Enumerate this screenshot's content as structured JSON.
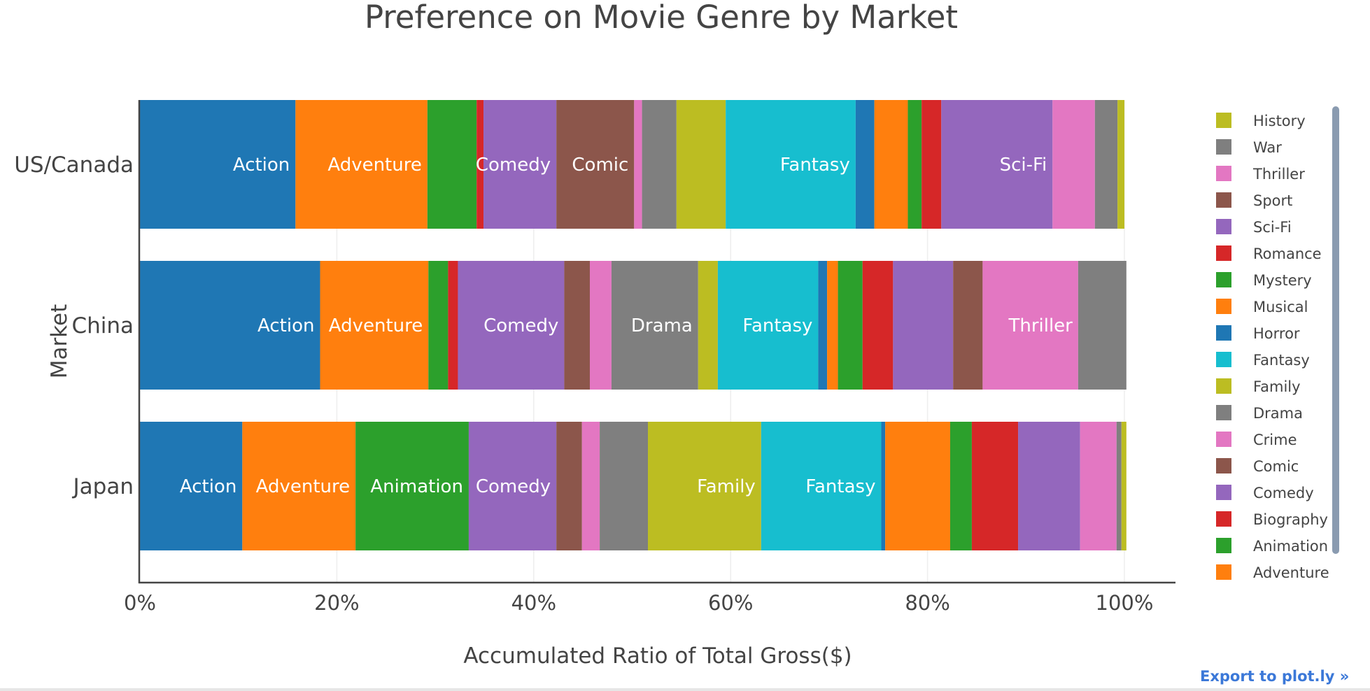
{
  "chart_data": {
    "type": "bar",
    "orientation": "horizontal",
    "barmode": "stack",
    "title": "Preference on Movie Genre by Market",
    "xlabel": "Accumulated Ratio of Total Gross($)",
    "ylabel": "Market",
    "xlim": [
      0,
      100
    ],
    "x_ticks": [
      "0%",
      "20%",
      "40%",
      "60%",
      "80%",
      "100%"
    ],
    "x_tick_values": [
      0,
      20,
      40,
      60,
      80,
      100
    ],
    "categories": [
      "US/Canada",
      "China",
      "Japan"
    ],
    "grid": true,
    "legend_position": "right",
    "series": [
      {
        "name": "Action",
        "color": "#1f77b4",
        "values": [
          15.8,
          18.3,
          10.4
        ]
      },
      {
        "name": "Adventure",
        "color": "#ff7f0e",
        "values": [
          13.4,
          11.0,
          11.5
        ]
      },
      {
        "name": "Animation",
        "color": "#2ca02c",
        "values": [
          5.0,
          2.0,
          11.5
        ]
      },
      {
        "name": "Biography",
        "color": "#d62728",
        "values": [
          0.7,
          1.0,
          0
        ]
      },
      {
        "name": "Comedy",
        "color": "#9467bd",
        "values": [
          7.4,
          10.8,
          8.9
        ]
      },
      {
        "name": "Comic",
        "color": "#8c564b",
        "values": [
          7.9,
          2.6,
          2.6
        ]
      },
      {
        "name": "Crime",
        "color": "#e377c2",
        "values": [
          0.8,
          2.2,
          1.8
        ]
      },
      {
        "name": "Drama",
        "color": "#7f7f7f",
        "values": [
          3.5,
          8.8,
          4.9
        ]
      },
      {
        "name": "Family",
        "color": "#bcbd22",
        "values": [
          5.0,
          2.0,
          11.5
        ]
      },
      {
        "name": "Fantasy",
        "color": "#17becf",
        "values": [
          13.2,
          10.2,
          12.2
        ]
      },
      {
        "name": "Horror",
        "color": "#1f77b4",
        "values": [
          1.9,
          0.9,
          0.4
        ]
      },
      {
        "name": "Musical",
        "color": "#ff7f0e",
        "values": [
          3.4,
          1.1,
          6.6
        ]
      },
      {
        "name": "Mystery",
        "color": "#2ca02c",
        "values": [
          1.4,
          2.5,
          2.2
        ]
      },
      {
        "name": "Romance",
        "color": "#d62728",
        "values": [
          2.0,
          3.1,
          4.7
        ]
      },
      {
        "name": "Sci-Fi",
        "color": "#9467bd",
        "values": [
          11.3,
          6.1,
          6.3
        ]
      },
      {
        "name": "Sport",
        "color": "#8c564b",
        "values": [
          0,
          3.0,
          0
        ]
      },
      {
        "name": "Thriller",
        "color": "#e377c2",
        "values": [
          4.3,
          9.7,
          3.7
        ]
      },
      {
        "name": "War",
        "color": "#7f7f7f",
        "values": [
          2.3,
          4.9,
          0.5
        ]
      },
      {
        "name": "History",
        "color": "#bcbd22",
        "values": [
          0.7,
          0,
          0.5
        ]
      }
    ],
    "bar_labels": [
      [
        true,
        true,
        false,
        false,
        true,
        true,
        false,
        false,
        false,
        true,
        false,
        false,
        false,
        false,
        true,
        false,
        false,
        false,
        false
      ],
      [
        true,
        true,
        false,
        false,
        true,
        false,
        false,
        true,
        false,
        true,
        false,
        false,
        false,
        false,
        false,
        false,
        true,
        false,
        false
      ],
      [
        true,
        true,
        true,
        false,
        true,
        false,
        false,
        false,
        true,
        true,
        false,
        false,
        false,
        false,
        false,
        false,
        false,
        false,
        false
      ]
    ],
    "legend_visible": [
      "History",
      "War",
      "Thriller",
      "Sport",
      "Sci-Fi",
      "Romance",
      "Mystery",
      "Musical",
      "Horror",
      "Fantasy",
      "Family",
      "Drama",
      "Crime",
      "Comic",
      "Comedy",
      "Biography",
      "Animation",
      "Adventure"
    ]
  },
  "ui": {
    "export_label": "Export to plot.ly »"
  }
}
